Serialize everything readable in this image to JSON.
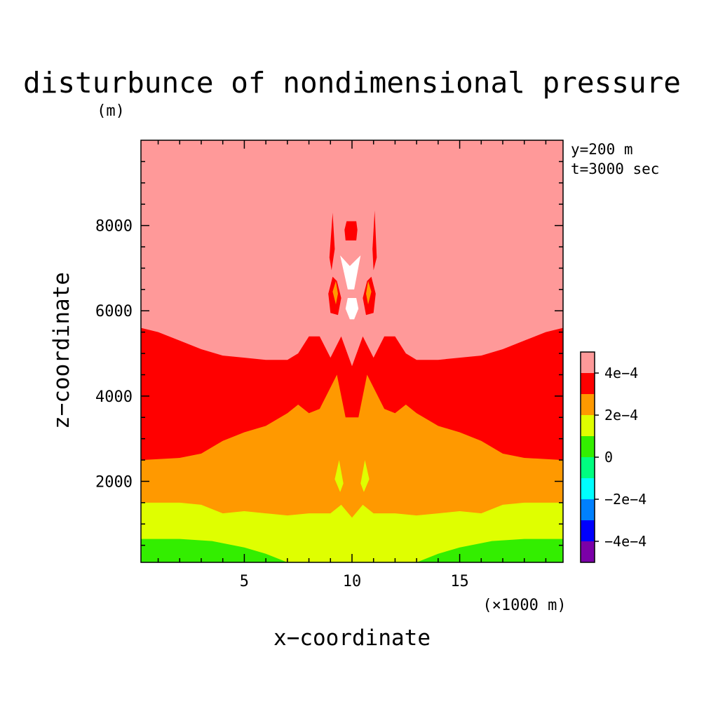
{
  "chart_data": {
    "type": "heatmap",
    "title": "disturbunce of nondimensional pressure",
    "xlabel": "x−coordinate",
    "ylabel": "z−coordinate",
    "x_unit": "(×1000 m)",
    "y_unit": "(m)",
    "annotations": [
      "y=200 m",
      "t=3000 sec"
    ],
    "xlim": [
      0.2,
      19.8
    ],
    "ylim": [
      100,
      10000
    ],
    "xticks": [
      5,
      10,
      15
    ],
    "yticks": [
      2000,
      4000,
      6000,
      8000
    ],
    "colorbar": {
      "levels": [
        {
          "range": [
            -0.0006,
            -0.0004
          ],
          "color": "#7b00a8"
        },
        {
          "range": [
            -0.0004,
            -0.0003
          ],
          "color": "#0000ff"
        },
        {
          "range": [
            -0.0003,
            -0.0002
          ],
          "color": "#0080ff"
        },
        {
          "range": [
            -0.0002,
            -0.0001
          ],
          "color": "#00ffff"
        },
        {
          "range": [
            -0.0001,
            0.0
          ],
          "color": "#00ff80"
        },
        {
          "range": [
            0.0,
            0.0001
          ],
          "color": "#33ee00"
        },
        {
          "range": [
            0.0001,
            0.0002
          ],
          "color": "#dfff00"
        },
        {
          "range": [
            0.0002,
            0.0003
          ],
          "color": "#ff9900"
        },
        {
          "range": [
            0.0003,
            0.0004
          ],
          "color": "#ff0000"
        },
        {
          "range": [
            0.0004,
            0.0006
          ],
          "color": "#ff9999"
        }
      ],
      "tick_labels": [
        "4e−4",
        "2e−4",
        "0",
        "−2e−4",
        "−4e−4"
      ]
    },
    "bands": [
      {
        "label": "0 to 1e−4",
        "color": "#33ee00",
        "boundary_z": [
          [
            0.2,
            650
          ],
          [
            2,
            650
          ],
          [
            3.5,
            600
          ],
          [
            5,
            450
          ],
          [
            6,
            300
          ],
          [
            7,
            100
          ],
          [
            13,
            100
          ],
          [
            14,
            300
          ],
          [
            15,
            450
          ],
          [
            16.5,
            600
          ],
          [
            18,
            650
          ],
          [
            19.8,
            650
          ]
        ]
      },
      {
        "label": "1e−4 to 2e−4",
        "color": "#dfff00",
        "boundary_z": [
          [
            0.2,
            1500
          ],
          [
            2,
            1500
          ],
          [
            3,
            1450
          ],
          [
            4,
            1250
          ],
          [
            5,
            1300
          ],
          [
            6,
            1250
          ],
          [
            7,
            1200
          ],
          [
            8,
            1250
          ],
          [
            9,
            1250
          ],
          [
            9.5,
            1450
          ],
          [
            10,
            1150
          ],
          [
            10.5,
            1450
          ],
          [
            11,
            1250
          ],
          [
            12,
            1250
          ],
          [
            13,
            1200
          ],
          [
            14,
            1250
          ],
          [
            15,
            1300
          ],
          [
            16,
            1250
          ],
          [
            17,
            1450
          ],
          [
            18,
            1500
          ],
          [
            19.8,
            1500
          ]
        ]
      },
      {
        "label": "2e−4 to 3e−4",
        "color": "#ff9900",
        "boundary_z": [
          [
            0.2,
            2500
          ],
          [
            2,
            2550
          ],
          [
            3,
            2650
          ],
          [
            4,
            2950
          ],
          [
            5,
            3150
          ],
          [
            6,
            3300
          ],
          [
            7,
            3600
          ],
          [
            7.5,
            3800
          ],
          [
            8,
            3600
          ],
          [
            8.5,
            3700
          ],
          [
            9.3,
            4500
          ],
          [
            9.7,
            3500
          ],
          [
            10.3,
            3500
          ],
          [
            10.7,
            4500
          ],
          [
            11.5,
            3700
          ],
          [
            12,
            3600
          ],
          [
            12.5,
            3800
          ],
          [
            13,
            3600
          ],
          [
            14,
            3300
          ],
          [
            15,
            3150
          ],
          [
            16,
            2950
          ],
          [
            17,
            2650
          ],
          [
            18,
            2550
          ],
          [
            19.8,
            2500
          ]
        ]
      },
      {
        "label": "3e−4 to 4e−4",
        "color": "#ff0000",
        "boundary_z": [
          [
            0.2,
            5600
          ],
          [
            1,
            5500
          ],
          [
            2,
            5300
          ],
          [
            3,
            5100
          ],
          [
            4,
            4950
          ],
          [
            5,
            4900
          ],
          [
            6,
            4850
          ],
          [
            7,
            4850
          ],
          [
            7.5,
            5000
          ],
          [
            8,
            5400
          ],
          [
            8.5,
            5400
          ],
          [
            9,
            4900
          ],
          [
            9.5,
            5400
          ],
          [
            10,
            4700
          ],
          [
            10.5,
            5400
          ],
          [
            11,
            4900
          ],
          [
            11.5,
            5400
          ],
          [
            12,
            5400
          ],
          [
            12.5,
            5000
          ],
          [
            13,
            4850
          ],
          [
            14,
            4850
          ],
          [
            15,
            4900
          ],
          [
            16,
            4950
          ],
          [
            17,
            5100
          ],
          [
            18,
            5300
          ],
          [
            19,
            5500
          ],
          [
            19.8,
            5600
          ]
        ]
      }
    ],
    "cells": [
      {
        "color": "#ff0000",
        "points": [
          [
            8.95,
            7250
          ],
          [
            9.1,
            8300
          ],
          [
            9.2,
            7450
          ],
          [
            9.05,
            6950
          ]
        ]
      },
      {
        "color": "#ff0000",
        "points": [
          [
            10.95,
            7450
          ],
          [
            11.05,
            8350
          ],
          [
            11.15,
            7250
          ],
          [
            11.0,
            6950
          ]
        ]
      },
      {
        "color": "#ff0000",
        "points": [
          [
            9.65,
            7900
          ],
          [
            9.75,
            8100
          ],
          [
            10.2,
            8100
          ],
          [
            10.25,
            7900
          ],
          [
            10.2,
            7650
          ],
          [
            9.7,
            7650
          ]
        ]
      },
      {
        "color": "#ffffff",
        "points": [
          [
            9.45,
            7300
          ],
          [
            9.9,
            7050
          ],
          [
            10.4,
            7300
          ],
          [
            10.1,
            6500
          ],
          [
            9.8,
            6500
          ]
        ]
      },
      {
        "color": "#ff0000",
        "points": [
          [
            8.9,
            6400
          ],
          [
            9.1,
            6800
          ],
          [
            9.3,
            6700
          ],
          [
            9.5,
            6300
          ],
          [
            9.35,
            5900
          ],
          [
            9.0,
            5950
          ]
        ]
      },
      {
        "color": "#ff0000",
        "points": [
          [
            10.5,
            6300
          ],
          [
            10.7,
            6700
          ],
          [
            10.9,
            6800
          ],
          [
            11.1,
            6400
          ],
          [
            11.0,
            5950
          ],
          [
            10.65,
            5900
          ]
        ]
      },
      {
        "color": "#ff9900",
        "points": [
          [
            9.1,
            6450
          ],
          [
            9.25,
            6700
          ],
          [
            9.35,
            6400
          ],
          [
            9.25,
            6150
          ]
        ]
      },
      {
        "color": "#ff9900",
        "points": [
          [
            10.65,
            6400
          ],
          [
            10.75,
            6700
          ],
          [
            10.9,
            6450
          ],
          [
            10.75,
            6150
          ]
        ]
      },
      {
        "color": "#ffffff",
        "points": [
          [
            9.7,
            6050
          ],
          [
            9.8,
            6300
          ],
          [
            10.2,
            6300
          ],
          [
            10.3,
            6050
          ],
          [
            10.1,
            5800
          ],
          [
            9.9,
            5800
          ]
        ]
      },
      {
        "color": "#dfff00",
        "points": [
          [
            9.2,
            2050
          ],
          [
            9.4,
            2500
          ],
          [
            9.6,
            1950
          ],
          [
            9.45,
            1750
          ]
        ]
      },
      {
        "color": "#dfff00",
        "points": [
          [
            10.4,
            1950
          ],
          [
            10.6,
            2500
          ],
          [
            10.8,
            2050
          ],
          [
            10.55,
            1750
          ]
        ]
      }
    ]
  }
}
